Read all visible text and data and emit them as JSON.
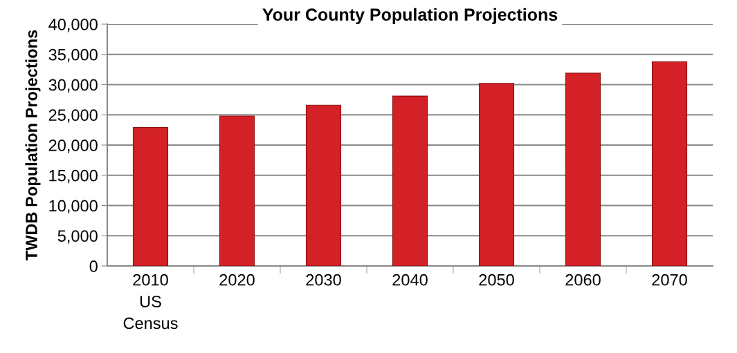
{
  "chart_data": {
    "type": "bar",
    "title": "Your County Population Projections",
    "ylabel": "TWDB Population Projections",
    "categories": [
      "2010\nUS\nCensus",
      "2020",
      "2030",
      "2040",
      "2050",
      "2060",
      "2070"
    ],
    "values": [
      22900,
      24800,
      26600,
      28100,
      30200,
      31900,
      33800
    ],
    "color": "#d42027",
    "ylim": [
      0,
      40000
    ],
    "yticks": [
      {
        "value": 0,
        "label": "0"
      },
      {
        "value": 5000,
        "label": "5,000"
      },
      {
        "value": 10000,
        "label": "10,000"
      },
      {
        "value": 15000,
        "label": "15,000"
      },
      {
        "value": 20000,
        "label": "20,000"
      },
      {
        "value": 25000,
        "label": "25,000"
      },
      {
        "value": 30000,
        "label": "30,000"
      },
      {
        "value": 35000,
        "label": "35,000"
      },
      {
        "value": 40000,
        "label": "40,000"
      }
    ],
    "grid": "y"
  }
}
